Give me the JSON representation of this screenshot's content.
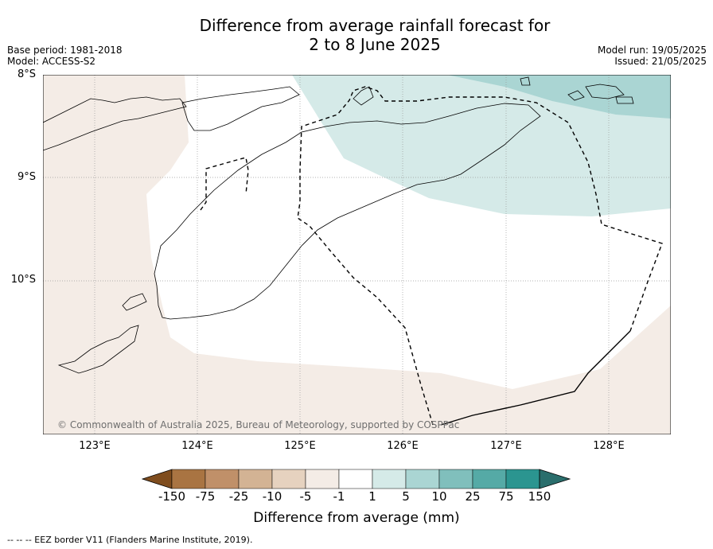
{
  "title_line1": "Difference from average rainfall forecast for",
  "title_line2": "2 to 8 June 2025",
  "base_period": "Base period: 1981-2018",
  "model": "Model: ACCESS-S2",
  "model_run": "Model run: 19/05/2025",
  "issued": "Issued: 21/05/2025",
  "copyright": "© Commonwealth of Australia 2025, Bureau of Meteorology, supported by COSPPac",
  "lat_ticks": [
    "8°S",
    "9°S",
    "10°S"
  ],
  "lon_ticks": [
    "123°E",
    "124°E",
    "125°E",
    "126°E",
    "127°E",
    "128°E"
  ],
  "colorbar": {
    "title": "Difference from average (mm)",
    "labels": [
      "-150",
      "-75",
      "-25",
      "-10",
      "-5",
      "-1",
      "1",
      "5",
      "10",
      "25",
      "75",
      "150"
    ],
    "colors": [
      "#7f4d1e",
      "#a97442",
      "#c09069",
      "#d3b394",
      "#e6d2bf",
      "#f4ece6",
      "#ffffff",
      "#d5eae8",
      "#aad5d3",
      "#80bfbc",
      "#55aaa6",
      "#2b9590",
      "#2a6e6c"
    ]
  },
  "footnote": "--  --  -- EEZ border V11 (Flanders Marine Institute, 2019)."
}
